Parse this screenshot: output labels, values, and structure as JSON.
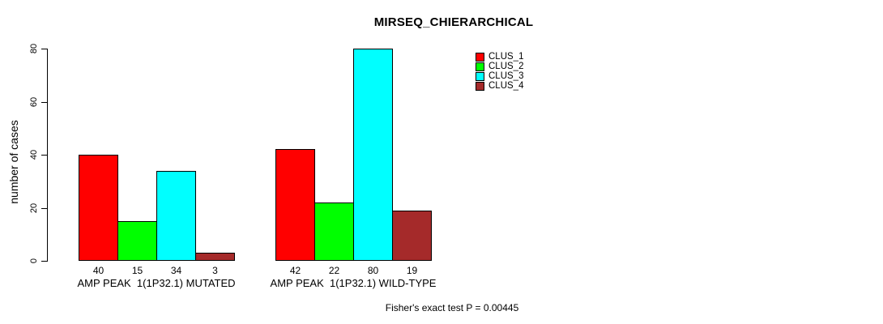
{
  "title": "MIRSEQ_CHIERARCHICAL",
  "chart_data": {
    "type": "bar",
    "title": "MIRSEQ_CHIERARCHICAL",
    "xlabel": "",
    "ylabel": "number of cases",
    "ylim": [
      0,
      80
    ],
    "yticks": [
      0,
      20,
      40,
      60,
      80
    ],
    "grid": false,
    "legend_position": "top-right",
    "categories": [
      "AMP PEAK  1(1P32.1) MUTATED",
      "AMP PEAK  1(1P32.1) WILD-TYPE"
    ],
    "series": [
      {
        "name": "CLUS_1",
        "color": "#FF0000",
        "values": [
          40,
          42
        ]
      },
      {
        "name": "CLUS_2",
        "color": "#00FF00",
        "values": [
          15,
          22
        ]
      },
      {
        "name": "CLUS_3",
        "color": "#00FFFF",
        "values": [
          34,
          80
        ]
      },
      {
        "name": "CLUS_4",
        "color": "#A52A2A",
        "values": [
          3,
          19
        ]
      }
    ],
    "bar_value_labels": [
      [
        40,
        15,
        34,
        3
      ],
      [
        42,
        22,
        80,
        19
      ]
    ],
    "annotation": "Fisher's exact test P = 0.00445"
  }
}
